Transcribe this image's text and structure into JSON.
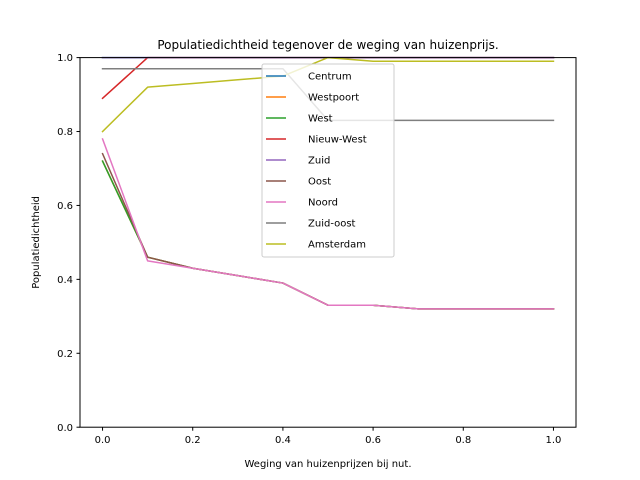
{
  "chart_data": {
    "type": "line",
    "title": "Populatiedichtheid tegenover de weging van huizenprijs.",
    "xlabel": "Weging van huizenprijzen bij nut.",
    "ylabel": "Populatiedichtheid",
    "xlim": [
      -0.05,
      1.05
    ],
    "ylim": [
      0.0,
      1.0
    ],
    "xticks": [
      0.0,
      0.2,
      0.4,
      0.6,
      0.8,
      1.0
    ],
    "xtick_labels": [
      "0.0",
      "0.2",
      "0.4",
      "0.6",
      "0.8",
      "1.0"
    ],
    "yticks": [
      0.0,
      0.2,
      0.4,
      0.6,
      0.8,
      1.0
    ],
    "ytick_labels": [
      "0.0",
      "0.2",
      "0.4",
      "0.6",
      "0.8",
      "1.0"
    ],
    "grid": false,
    "legend_position": "top-center",
    "x": [
      0.0,
      0.1,
      0.2,
      0.3,
      0.4,
      0.5,
      0.6,
      0.7,
      0.8,
      0.9,
      1.0
    ],
    "series": [
      {
        "name": "Centrum",
        "color": "#1f77b4",
        "values": [
          1.0,
          1.0,
          1.0,
          1.0,
          1.0,
          1.0,
          1.0,
          1.0,
          1.0,
          1.0,
          1.0
        ]
      },
      {
        "name": "Westpoort",
        "color": "#ff7f0e",
        "values": [
          0.72,
          0.46,
          0.43,
          0.41,
          0.39,
          0.33,
          0.33,
          0.32,
          0.32,
          0.32,
          0.32
        ]
      },
      {
        "name": "West",
        "color": "#2ca02c",
        "values": [
          0.72,
          0.46,
          0.43,
          0.41,
          0.39,
          0.33,
          0.33,
          0.32,
          0.32,
          0.32,
          0.32
        ]
      },
      {
        "name": "Nieuw-West",
        "color": "#d62728",
        "values": [
          0.89,
          1.0,
          1.0,
          1.0,
          1.0,
          1.0,
          1.0,
          1.0,
          1.0,
          1.0,
          1.0
        ]
      },
      {
        "name": "Zuid",
        "color": "#9467bd",
        "values": [
          1.0,
          1.0,
          1.0,
          1.0,
          1.0,
          1.0,
          1.0,
          1.0,
          1.0,
          1.0,
          1.0
        ]
      },
      {
        "name": "Oost",
        "color": "#8c564b",
        "values": [
          0.74,
          0.46,
          0.43,
          0.41,
          0.39,
          0.33,
          0.33,
          0.32,
          0.32,
          0.32,
          0.32
        ]
      },
      {
        "name": "Noord",
        "color": "#e377c2",
        "values": [
          0.78,
          0.45,
          0.43,
          0.41,
          0.39,
          0.33,
          0.33,
          0.32,
          0.32,
          0.32,
          0.32
        ]
      },
      {
        "name": "Zuid-oost",
        "color": "#7f7f7f",
        "values": [
          0.97,
          0.97,
          0.97,
          0.97,
          0.97,
          0.83,
          0.83,
          0.83,
          0.83,
          0.83,
          0.83
        ]
      },
      {
        "name": "Amsterdam",
        "color": "#bcbd22",
        "values": [
          0.8,
          0.92,
          0.93,
          0.94,
          0.95,
          1.0,
          0.99,
          0.99,
          0.99,
          0.99,
          0.99
        ]
      }
    ]
  }
}
